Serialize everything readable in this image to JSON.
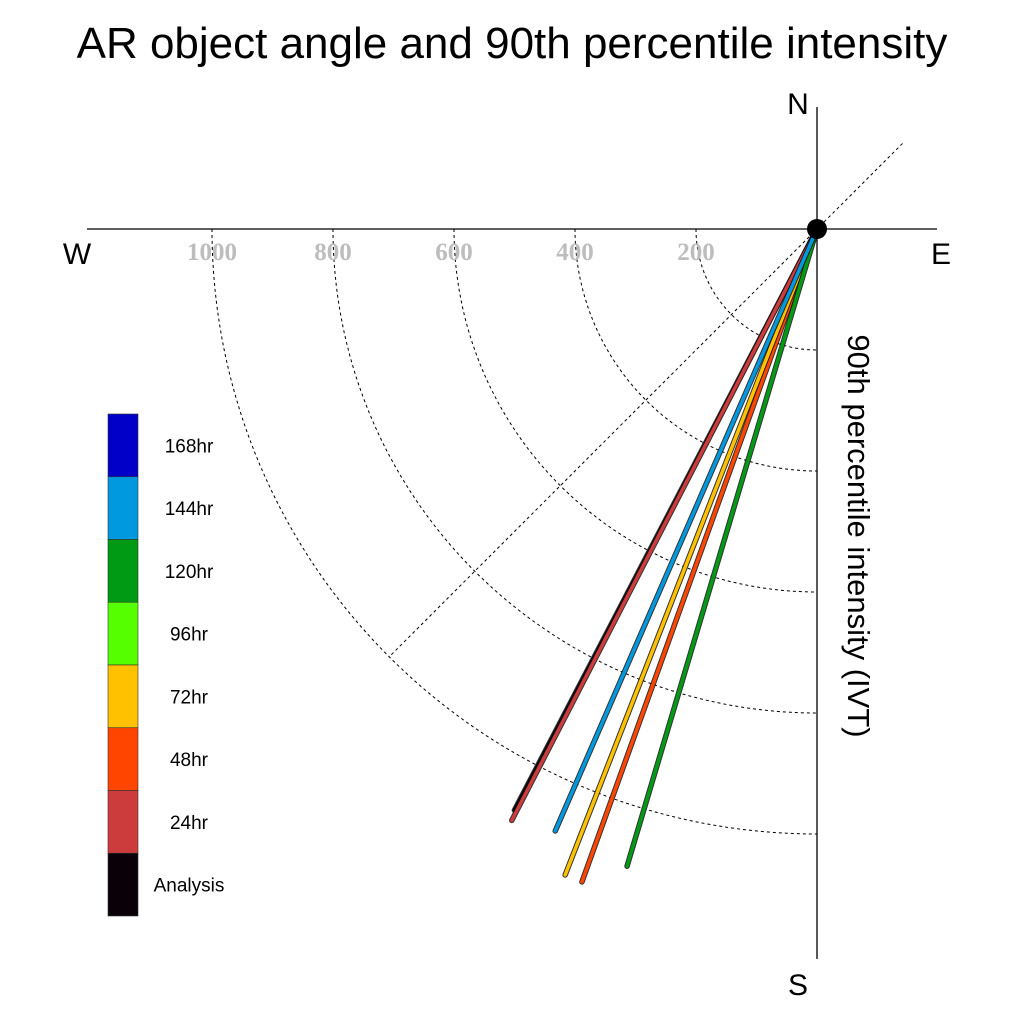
{
  "chart_data": {
    "type": "polar-vector",
    "title": "AR object angle and 90th percentile intensity",
    "radial_axis_label": "90th percentile intensity (IVT)",
    "compass": {
      "north": "N",
      "south": "S",
      "east": "E",
      "west": "W"
    },
    "rings": [
      200,
      400,
      600,
      800,
      1000
    ],
    "ring_labels": [
      "200",
      "400",
      "600",
      "800",
      "1000"
    ],
    "rmax": 1200,
    "guide_line_bearing_deg": 45,
    "vectors": [
      {
        "name": "Analysis",
        "bearing_deg": 207.5,
        "intensity": 1083,
        "color": "#0a0008"
      },
      {
        "name": "24hr",
        "bearing_deg": 207.3,
        "intensity": 1100,
        "color": "#cc3c3c"
      },
      {
        "name": "48hr",
        "bearing_deg": 199.8,
        "intensity": 1147,
        "color": "#ff4500"
      },
      {
        "name": "72hr",
        "bearing_deg": 201.3,
        "intensity": 1146,
        "color": "#ffc100"
      },
      {
        "name": "120hr",
        "bearing_deg": 196.6,
        "intensity": 1099,
        "color": "#009a14"
      },
      {
        "name": "144hr",
        "bearing_deg": 203.5,
        "intensity": 1085,
        "color": "#0099e0"
      }
    ],
    "legend": [
      {
        "label": "168hr",
        "color": "#0000c8"
      },
      {
        "label": "144hr",
        "color": "#0099e0"
      },
      {
        "label": "120hr",
        "color": "#009a14"
      },
      {
        "label": "96hr",
        "color": "#55ff00"
      },
      {
        "label": "72hr",
        "color": "#ffc100"
      },
      {
        "label": "48hr",
        "color": "#ff4500"
      },
      {
        "label": "24hr",
        "color": "#cc3c3c"
      },
      {
        "label": "Analysis",
        "color": "#0a0008"
      }
    ]
  }
}
